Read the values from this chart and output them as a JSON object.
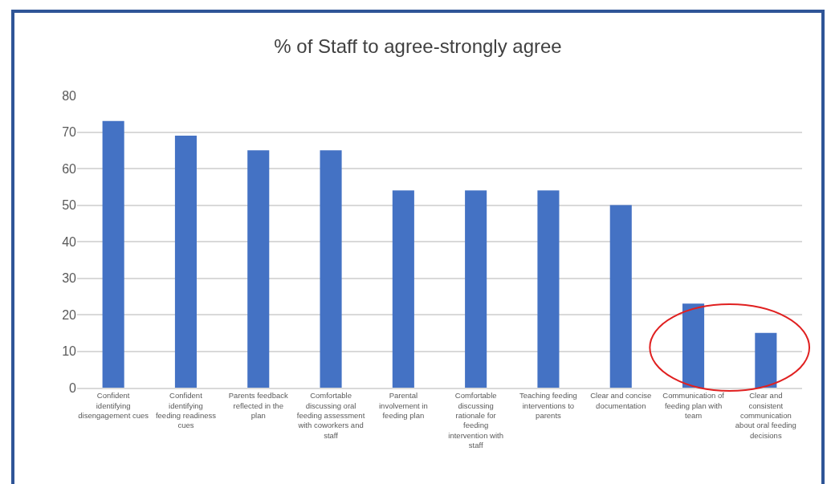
{
  "chart_data": {
    "type": "bar",
    "title": "% of Staff to agree-strongly agree",
    "categories": [
      "Confident identifying disengagement cues",
      "Confident identifying feeding readiness cues",
      "Parents feedback reflected in the plan",
      "Comfortable discussing oral feeding assessment with coworkers and staff",
      "Parental involvement in feeding plan",
      "Comfortable discussing rationale for feeding intervention with staff",
      "Teaching feeding interventions to parents",
      "Clear and concise documentation",
      "Communication of feeding plan with team",
      "Clear and consistent communication about oral feeding decisions"
    ],
    "values": [
      73,
      69,
      65,
      65,
      54,
      54,
      54,
      50,
      23,
      15
    ],
    "color": "#4472c4",
    "ylim": [
      0,
      80
    ],
    "yticks": [
      0,
      10,
      20,
      30,
      40,
      50,
      60,
      70,
      80
    ],
    "grid": "y",
    "legend": false
  }
}
